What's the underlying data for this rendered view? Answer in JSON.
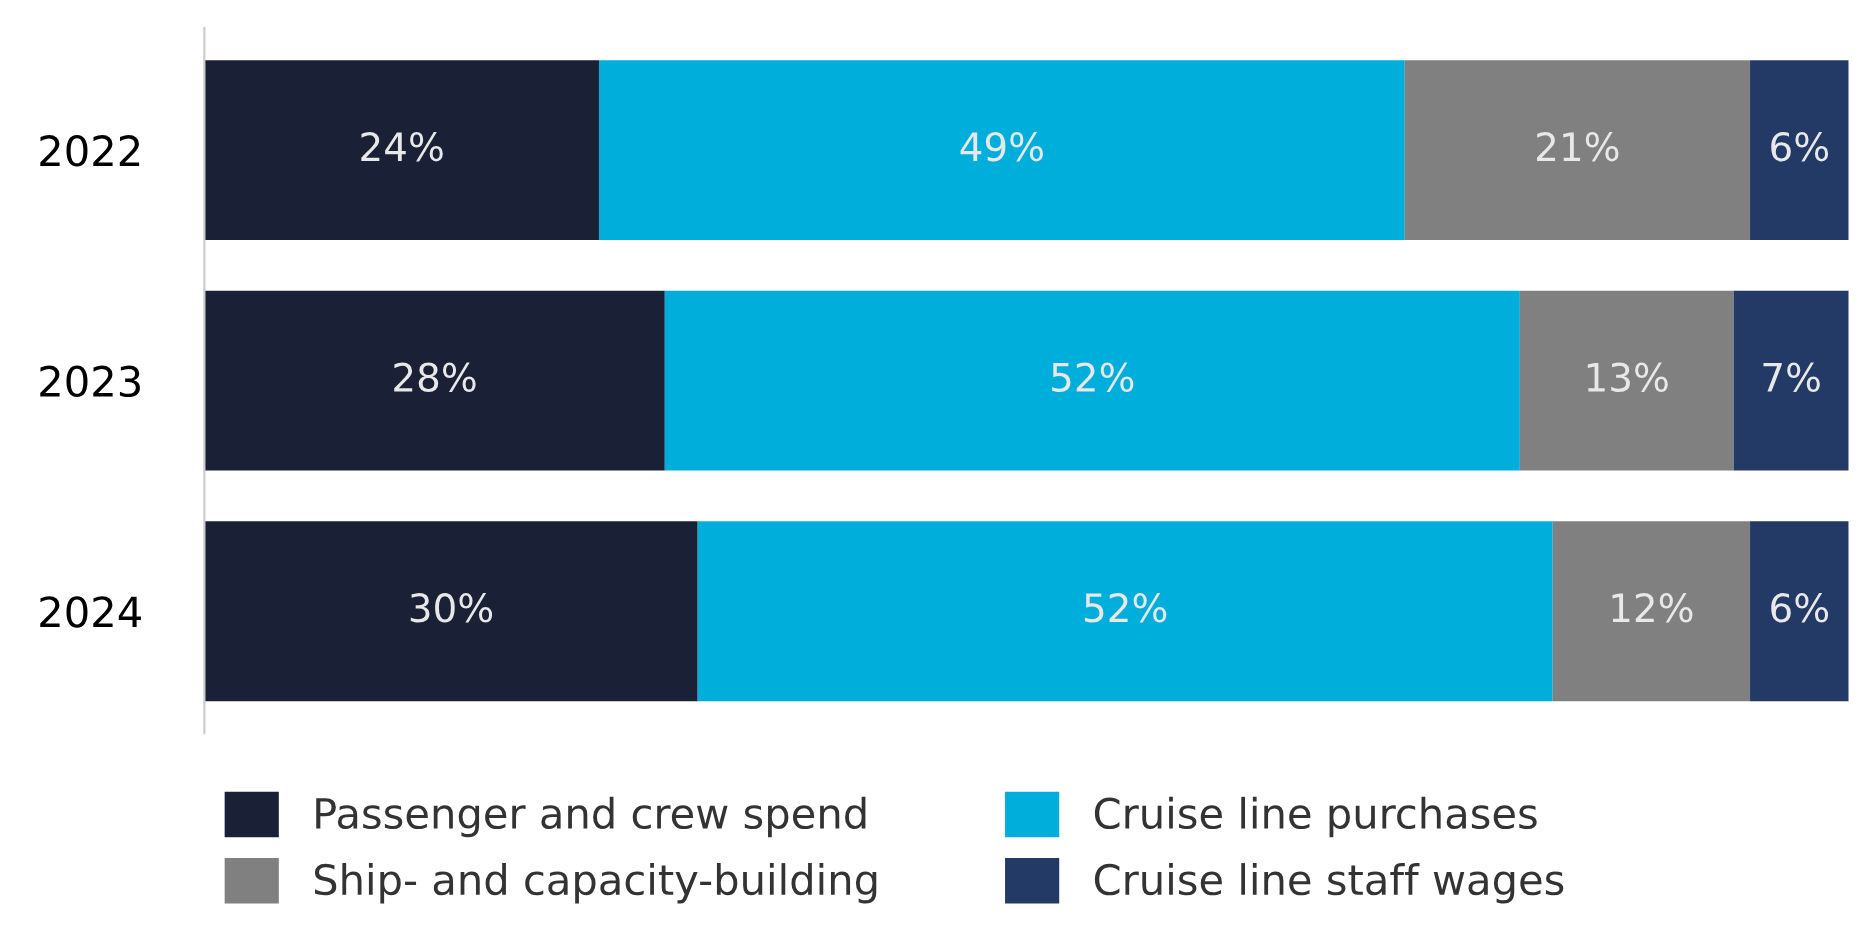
{
  "chart_data": {
    "type": "bar",
    "orientation": "horizontal",
    "stacked": true,
    "legend": "bottom",
    "grid": false,
    "categories": [
      "2022",
      "2023",
      "2024"
    ],
    "series": [
      {
        "name": "Passenger and crew spend",
        "color": "#1a2035",
        "values": [
          24,
          28,
          30
        ],
        "value_labels": [
          "24%",
          "28%",
          "30%"
        ]
      },
      {
        "name": "Cruise line purchases",
        "color": "#00aedb",
        "values": [
          49,
          52,
          52
        ],
        "value_labels": [
          "49%",
          "52%",
          "52%"
        ]
      },
      {
        "name": "Ship- and capacity-building",
        "color": "#808080",
        "values": [
          21,
          13,
          12
        ],
        "value_labels": [
          "21%",
          "13%",
          "12%"
        ]
      },
      {
        "name": "Cruise line staff wages",
        "color": "#233a66",
        "values": [
          6,
          7,
          6
        ],
        "value_labels": [
          "6%",
          "7%",
          "6%"
        ]
      }
    ]
  }
}
